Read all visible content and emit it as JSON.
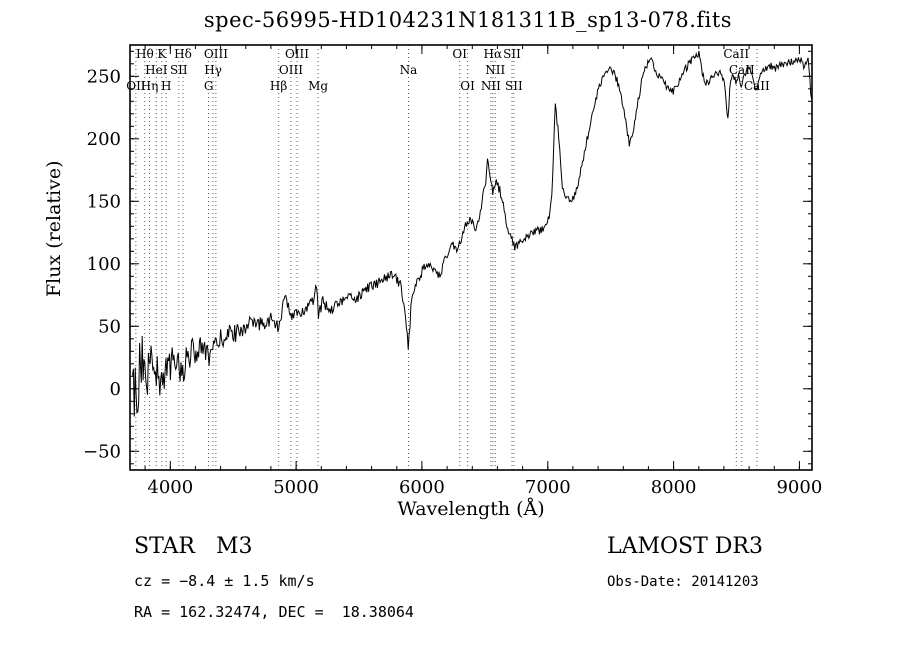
{
  "title": "spec-56995-HD104231N181311B_sp13-078.fits",
  "chart_data": {
    "type": "line",
    "title": "spec-56995-HD104231N181311B_sp13-078.fits",
    "xlabel": "Wavelength (Å)",
    "ylabel": "Flux (relative)",
    "xlim": [
      3680,
      9100
    ],
    "ylim": [
      -65,
      275
    ],
    "xticks": [
      4000,
      5000,
      6000,
      7000,
      8000,
      9000
    ],
    "yticks": [
      -50,
      0,
      50,
      100,
      150,
      200,
      250
    ],
    "x_minor_step": 200,
    "y_minor_step": 10,
    "grid": false,
    "legend": "none",
    "line_color": "#000000",
    "marker_color": "#9e4343",
    "noise_seed": 12345,
    "sample_step": 7,
    "series": [
      {
        "name": "spectrum",
        "anchors": [
          [
            3700,
            -20
          ],
          [
            3708,
            35
          ],
          [
            3716,
            -40
          ],
          [
            3724,
            20
          ],
          [
            3732,
            -25
          ],
          [
            3740,
            15
          ],
          [
            3750,
            -30
          ],
          [
            3758,
            22
          ],
          [
            3766,
            -10
          ],
          [
            3775,
            28
          ],
          [
            3785,
            -18
          ],
          [
            3795,
            12
          ],
          [
            3805,
            20
          ],
          [
            3815,
            -5
          ],
          [
            3825,
            18
          ],
          [
            3835,
            2
          ],
          [
            3845,
            25
          ],
          [
            3860,
            8
          ],
          [
            3875,
            28
          ],
          [
            3890,
            12
          ],
          [
            3905,
            24
          ],
          [
            3920,
            6
          ],
          [
            3933,
            -2
          ],
          [
            3945,
            22
          ],
          [
            3960,
            8
          ],
          [
            3975,
            26
          ],
          [
            3990,
            14
          ],
          [
            4010,
            24
          ],
          [
            4030,
            18
          ],
          [
            4060,
            26
          ],
          [
            4080,
            14
          ],
          [
            4101,
            10
          ],
          [
            4125,
            28
          ],
          [
            4150,
            24
          ],
          [
            4180,
            32
          ],
          [
            4210,
            28
          ],
          [
            4240,
            34
          ],
          [
            4270,
            30
          ],
          [
            4305,
            26
          ],
          [
            4340,
            30
          ],
          [
            4365,
            34
          ],
          [
            4400,
            40
          ],
          [
            4440,
            42
          ],
          [
            4480,
            45
          ],
          [
            4520,
            44
          ],
          [
            4560,
            48
          ],
          [
            4600,
            50
          ],
          [
            4640,
            52
          ],
          [
            4680,
            50
          ],
          [
            4720,
            52
          ],
          [
            4760,
            54
          ],
          [
            4800,
            56
          ],
          [
            4830,
            52
          ],
          [
            4861,
            48
          ],
          [
            4880,
            58
          ],
          [
            4900,
            68
          ],
          [
            4920,
            72
          ],
          [
            4940,
            66
          ],
          [
            4960,
            60
          ],
          [
            4990,
            58
          ],
          [
            5020,
            60
          ],
          [
            5060,
            63
          ],
          [
            5100,
            68
          ],
          [
            5140,
            72
          ],
          [
            5160,
            90
          ],
          [
            5178,
            58
          ],
          [
            5210,
            70
          ],
          [
            5240,
            66
          ],
          [
            5280,
            64
          ],
          [
            5320,
            68
          ],
          [
            5360,
            70
          ],
          [
            5400,
            72
          ],
          [
            5440,
            74
          ],
          [
            5480,
            72
          ],
          [
            5520,
            76
          ],
          [
            5560,
            80
          ],
          [
            5600,
            82
          ],
          [
            5640,
            84
          ],
          [
            5680,
            87
          ],
          [
            5720,
            89
          ],
          [
            5760,
            90
          ],
          [
            5800,
            88
          ],
          [
            5840,
            80
          ],
          [
            5870,
            55
          ],
          [
            5893,
            32
          ],
          [
            5915,
            70
          ],
          [
            5940,
            82
          ],
          [
            5970,
            88
          ],
          [
            6000,
            94
          ],
          [
            6030,
            99
          ],
          [
            6060,
            97
          ],
          [
            6090,
            95
          ],
          [
            6120,
            90
          ],
          [
            6150,
            93
          ],
          [
            6180,
            102
          ],
          [
            6210,
            110
          ],
          [
            6240,
            117
          ],
          [
            6270,
            112
          ],
          [
            6300,
            117
          ],
          [
            6330,
            126
          ],
          [
            6360,
            132
          ],
          [
            6390,
            136
          ],
          [
            6420,
            128
          ],
          [
            6450,
            134
          ],
          [
            6480,
            150
          ],
          [
            6505,
            165
          ],
          [
            6525,
            184
          ],
          [
            6545,
            168
          ],
          [
            6563,
            157
          ],
          [
            6585,
            167
          ],
          [
            6615,
            160
          ],
          [
            6645,
            148
          ],
          [
            6670,
            132
          ],
          [
            6695,
            124
          ],
          [
            6716,
            118
          ],
          [
            6740,
            114
          ],
          [
            6770,
            116
          ],
          [
            6800,
            118
          ],
          [
            6840,
            121
          ],
          [
            6880,
            124
          ],
          [
            6920,
            126
          ],
          [
            6960,
            129
          ],
          [
            7000,
            133
          ],
          [
            7030,
            150
          ],
          [
            7060,
            226
          ],
          [
            7085,
            205
          ],
          [
            7110,
            165
          ],
          [
            7140,
            152
          ],
          [
            7180,
            150
          ],
          [
            7220,
            155
          ],
          [
            7260,
            172
          ],
          [
            7300,
            192
          ],
          [
            7340,
            215
          ],
          [
            7380,
            232
          ],
          [
            7420,
            244
          ],
          [
            7460,
            252
          ],
          [
            7500,
            257
          ],
          [
            7530,
            252
          ],
          [
            7560,
            244
          ],
          [
            7590,
            232
          ],
          [
            7620,
            212
          ],
          [
            7650,
            196
          ],
          [
            7680,
            205
          ],
          [
            7710,
            225
          ],
          [
            7740,
            243
          ],
          [
            7770,
            255
          ],
          [
            7800,
            261
          ],
          [
            7830,
            263
          ],
          [
            7860,
            254
          ],
          [
            7890,
            249
          ],
          [
            7920,
            245
          ],
          [
            7960,
            240
          ],
          [
            8000,
            238
          ],
          [
            8040,
            246
          ],
          [
            8080,
            253
          ],
          [
            8120,
            260
          ],
          [
            8160,
            265
          ],
          [
            8200,
            268
          ],
          [
            8230,
            252
          ],
          [
            8260,
            244
          ],
          [
            8300,
            248
          ],
          [
            8340,
            254
          ],
          [
            8380,
            252
          ],
          [
            8410,
            240
          ],
          [
            8430,
            212
          ],
          [
            8450,
            246
          ],
          [
            8480,
            250
          ],
          [
            8498,
            244
          ],
          [
            8515,
            253
          ],
          [
            8542,
            240
          ],
          [
            8565,
            252
          ],
          [
            8590,
            257
          ],
          [
            8620,
            252
          ],
          [
            8650,
            242
          ],
          [
            8662,
            238
          ],
          [
            8685,
            250
          ],
          [
            8720,
            256
          ],
          [
            8760,
            259
          ],
          [
            8800,
            256
          ],
          [
            8840,
            258
          ],
          [
            8880,
            259
          ],
          [
            8920,
            261
          ],
          [
            8960,
            262
          ],
          [
            9000,
            264
          ],
          [
            9040,
            258
          ],
          [
            9070,
            263
          ],
          [
            9100,
            226
          ]
        ]
      }
    ],
    "noise_profile": [
      [
        3700,
        32
      ],
      [
        3780,
        26
      ],
      [
        3860,
        20
      ],
      [
        3940,
        16
      ],
      [
        4020,
        13
      ],
      [
        4100,
        11
      ],
      [
        4200,
        9
      ],
      [
        4350,
        8
      ],
      [
        4500,
        7
      ],
      [
        4700,
        6
      ],
      [
        4900,
        5
      ],
      [
        5200,
        4.5
      ],
      [
        5600,
        4
      ],
      [
        6000,
        4
      ],
      [
        6500,
        4
      ],
      [
        7000,
        3.5
      ],
      [
        7500,
        3.5
      ],
      [
        8000,
        3
      ],
      [
        8600,
        3
      ],
      [
        9100,
        3
      ]
    ],
    "spectral_lines": [
      {
        "label": "OII",
        "wavelength": 3727,
        "row": 2
      },
      {
        "label": "Hθ",
        "wavelength": 3798,
        "row": 0
      },
      {
        "label": "Hη",
        "wavelength": 3835,
        "row": 2
      },
      {
        "label": "HeI",
        "wavelength": 3889,
        "row": 1
      },
      {
        "label": "K",
        "wavelength": 3933,
        "row": 0
      },
      {
        "label": "H",
        "wavelength": 3968,
        "row": 2
      },
      {
        "label": "SII",
        "wavelength": 4068,
        "row": 1
      },
      {
        "label": "Hδ",
        "wavelength": 4101,
        "row": 0
      },
      {
        "label": "G",
        "wavelength": 4305,
        "row": 2
      },
      {
        "label": "Hγ",
        "wavelength": 4340,
        "row": 1
      },
      {
        "label": "OIII",
        "wavelength": 4363,
        "row": 0
      },
      {
        "label": "Hβ",
        "wavelength": 4861,
        "row": 2
      },
      {
        "label": "OIII",
        "wavelength": 4959,
        "row": 1
      },
      {
        "label": "OIII",
        "wavelength": 5007,
        "row": 0
      },
      {
        "label": "Mg",
        "wavelength": 5175,
        "row": 2
      },
      {
        "label": "Na",
        "wavelength": 5893,
        "row": 1
      },
      {
        "label": "OI",
        "wavelength": 6300,
        "row": 0
      },
      {
        "label": "OI",
        "wavelength": 6363,
        "row": 2
      },
      {
        "label": "NII",
        "wavelength": 6548,
        "row": 2
      },
      {
        "label": "Hα",
        "wavelength": 6563,
        "row": 0
      },
      {
        "label": "NII",
        "wavelength": 6583,
        "row": 1
      },
      {
        "label": "SII",
        "wavelength": 6716,
        "row": 0
      },
      {
        "label": "SII",
        "wavelength": 6731,
        "row": 2
      },
      {
        "label": "CaII",
        "wavelength": 8498,
        "row": 0
      },
      {
        "label": "CaII",
        "wavelength": 8542,
        "row": 1
      },
      {
        "label": "CaII",
        "wavelength": 8662,
        "row": 2
      }
    ]
  },
  "annotations": {
    "object_class": "STAR   M3",
    "survey": "LAMOST DR3",
    "cz": "cz = −8.4 ± 1.5 km/s",
    "obs_date": "Obs-Date: 20141203",
    "coords": "RA = 162.32474, DEC =  18.38064"
  }
}
